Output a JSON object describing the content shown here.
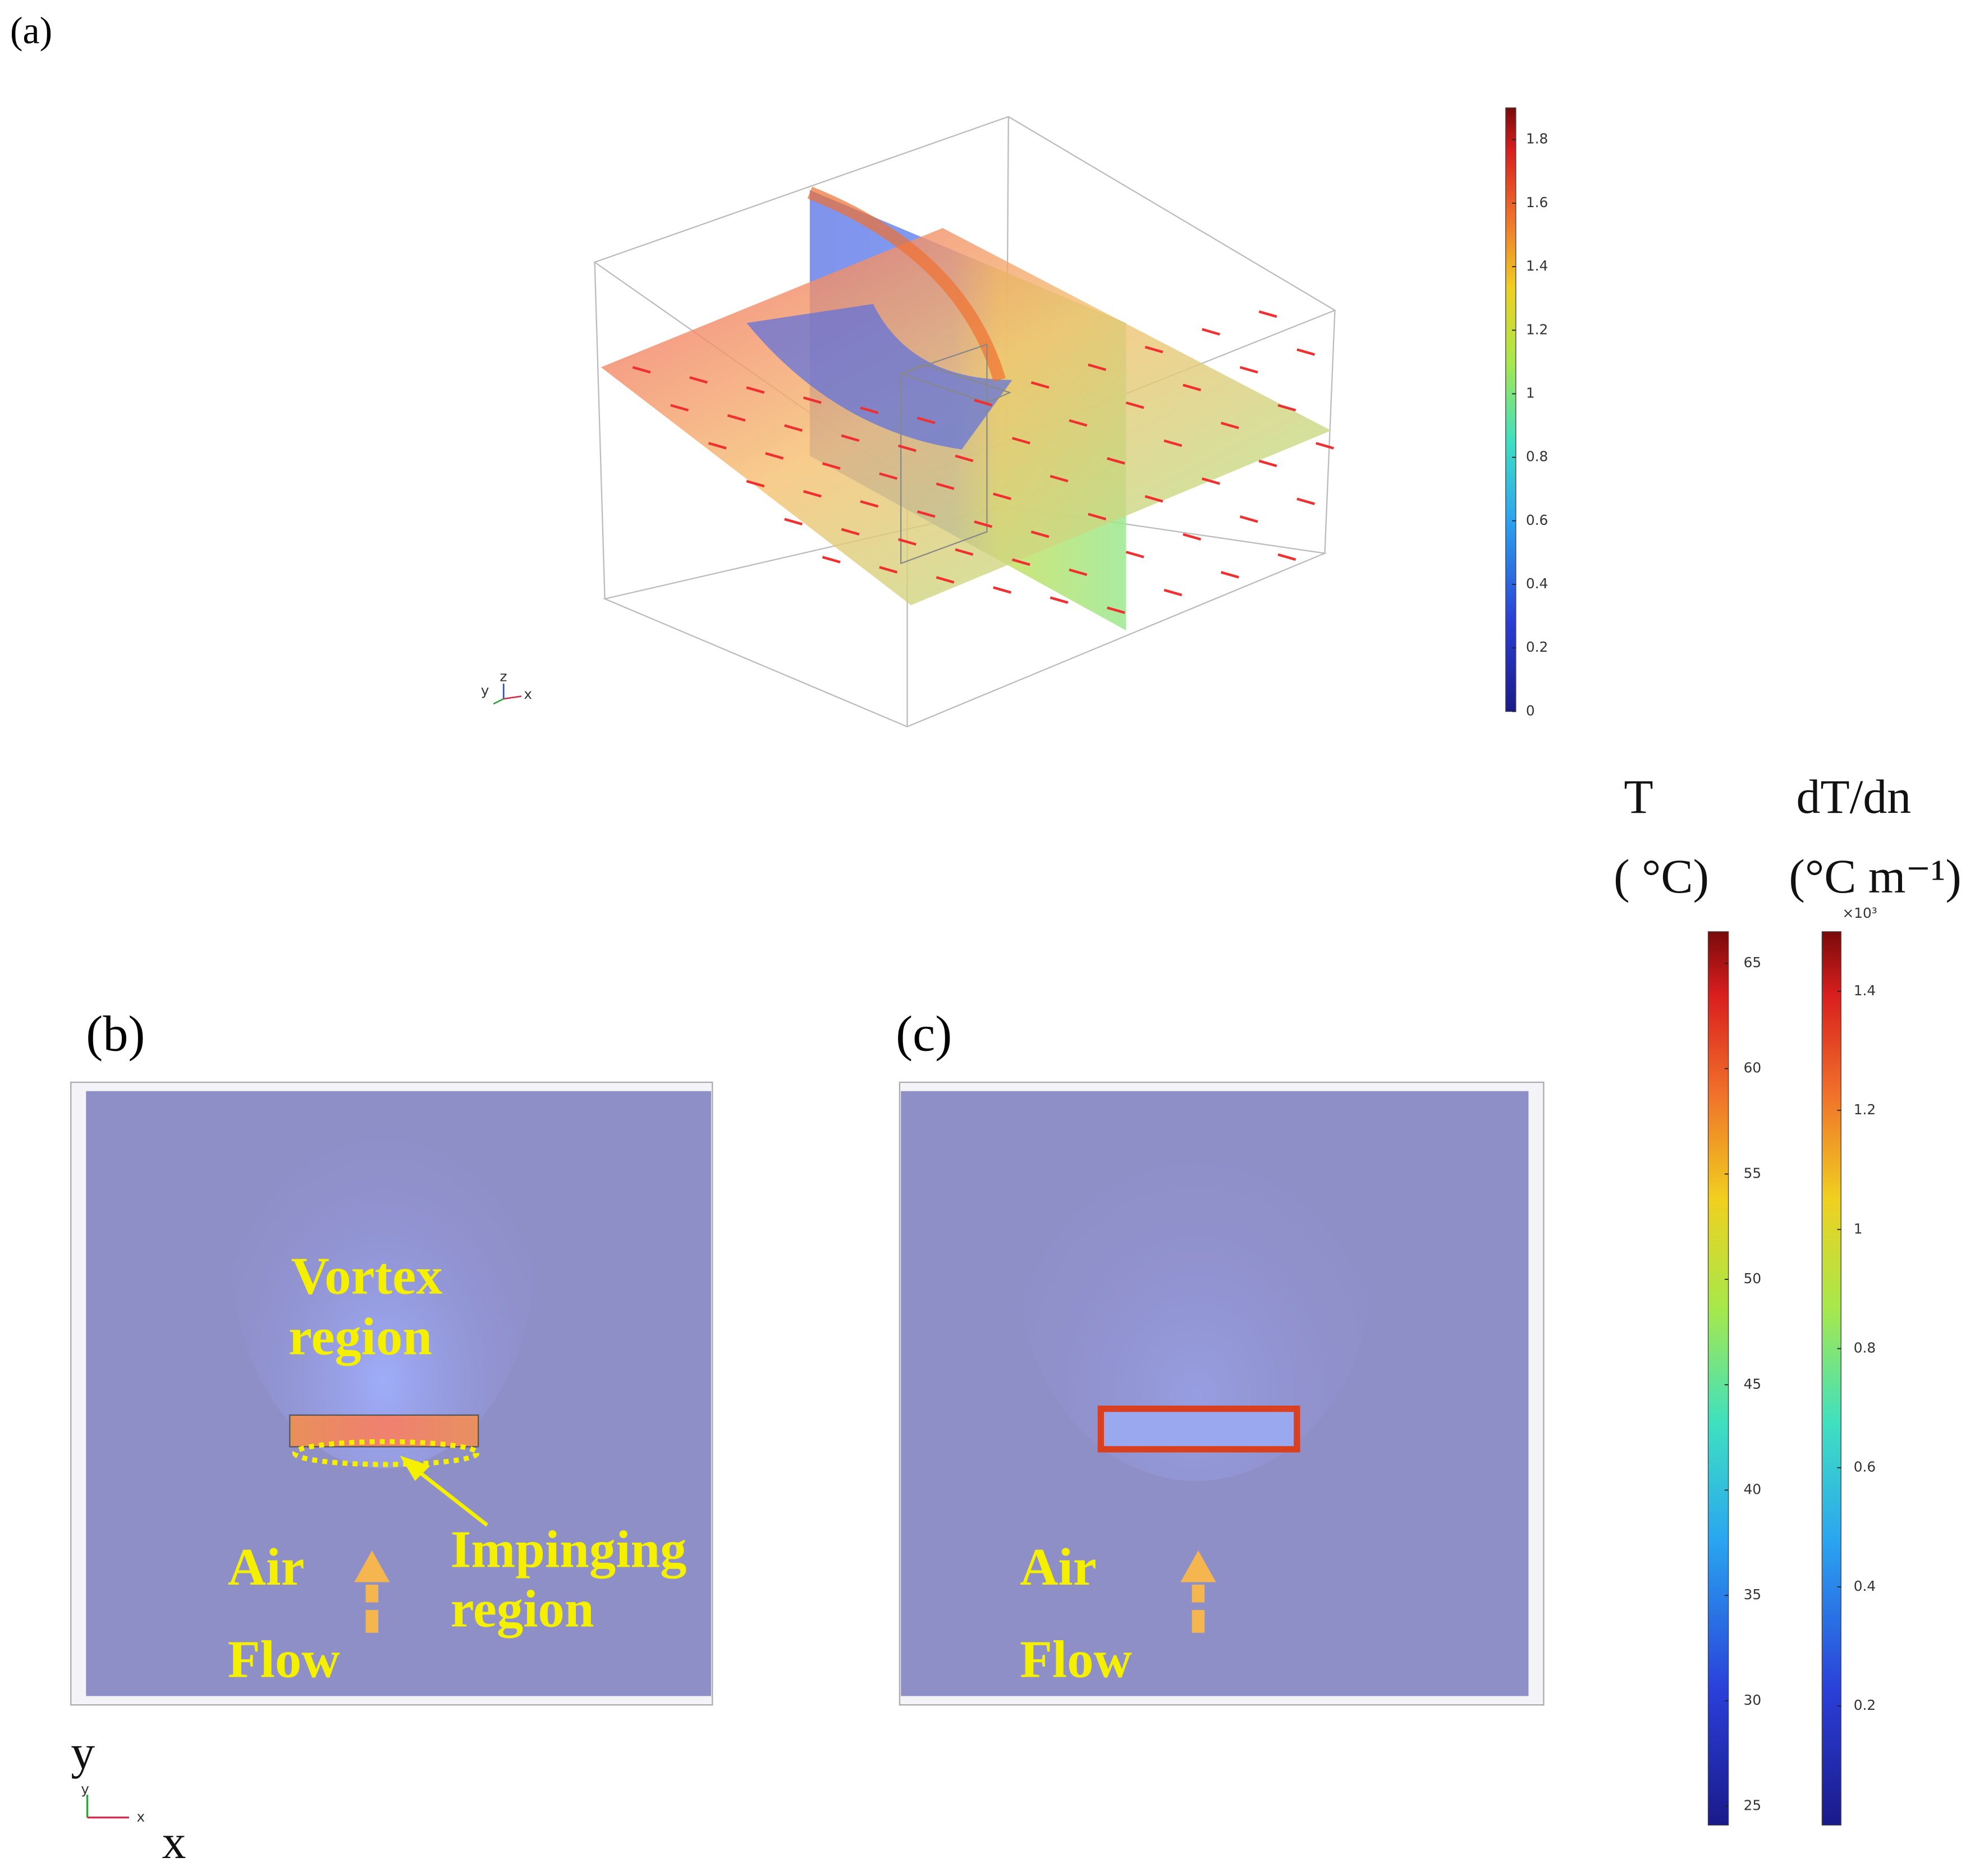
{
  "labels": {
    "a": "(a)",
    "b": "(b)",
    "c": "(c)"
  },
  "panel_a": {
    "axes": [
      "y",
      "z",
      "x"
    ]
  },
  "panel_b": {
    "vortex": [
      "Vortex",
      "region"
    ],
    "impinging": [
      "Impinging",
      "region"
    ],
    "flow": [
      "Air",
      "Flow"
    ]
  },
  "panel_c": {
    "flow": [
      "Air",
      "Flow"
    ]
  },
  "axis_labels": {
    "y": "y",
    "x": "x",
    "small": [
      "y",
      "x"
    ]
  },
  "colorbars": [
    {
      "ticks": [
        0,
        0.2,
        0.4,
        0.6,
        0.8,
        1,
        1.2,
        1.4,
        1.6,
        1.8
      ],
      "range": [
        0,
        1.9
      ]
    },
    {
      "title": "T",
      "unit": "( °C)",
      "ticks": [
        25,
        30,
        35,
        40,
        45,
        50,
        55,
        60,
        65
      ],
      "range": [
        24.1,
        66.5
      ]
    },
    {
      "title": "dT/dn",
      "unit": "(°C m⁻¹)",
      "multiplier": "×10³",
      "ticks": [
        0.2,
        0.4,
        0.6,
        0.8,
        1,
        1.2,
        1.4
      ],
      "range": [
        0,
        1.5
      ]
    }
  ]
}
